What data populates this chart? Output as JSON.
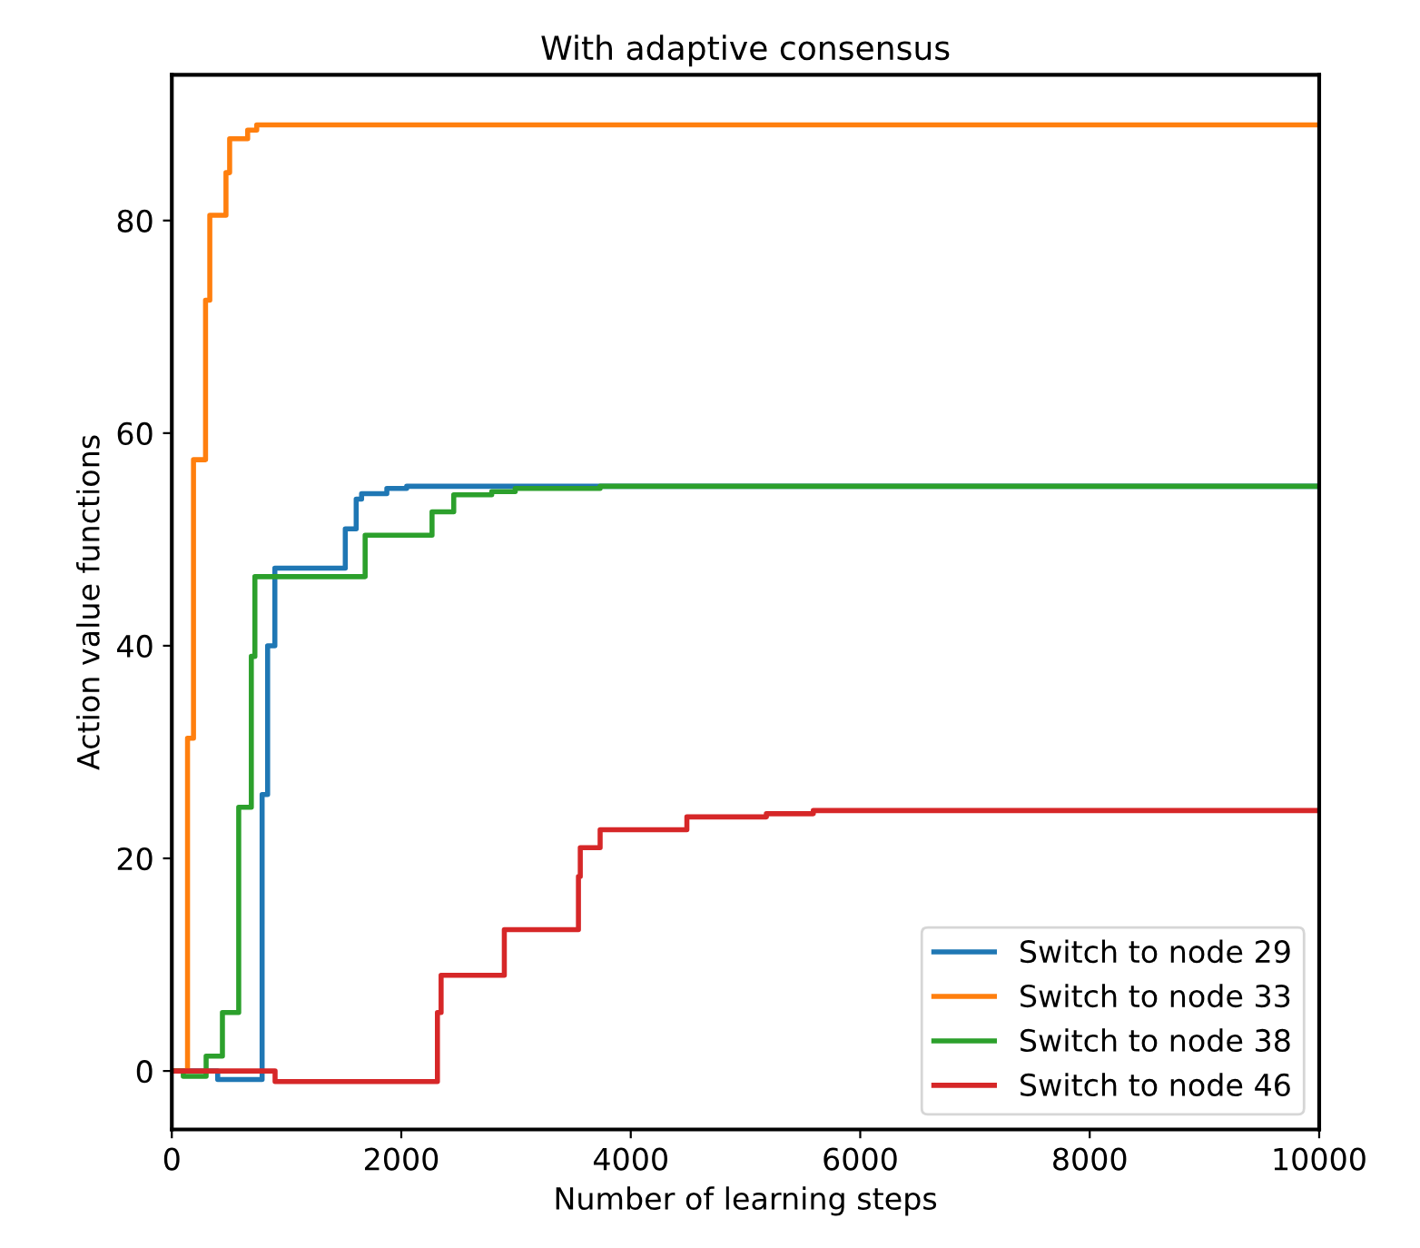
{
  "chart_data": {
    "type": "step",
    "title": "With adaptive consensus",
    "xlabel": "Number of learning steps",
    "ylabel": "Action value functions",
    "xlim": [
      0,
      10000
    ],
    "xticks": [
      0,
      2000,
      4000,
      6000,
      8000,
      10000
    ],
    "ylim": [
      -5.5,
      93.7
    ],
    "yticks": [
      0,
      20,
      40,
      60,
      80
    ],
    "grid": false,
    "legend": "bottom right",
    "series": [
      {
        "name": "Switch to node 29",
        "color": "#1f77b4",
        "x": [
          0,
          400,
          787,
          835,
          898,
          1512,
          1607,
          1654,
          1874,
          2047,
          10000
        ],
        "values": [
          0,
          -0.8,
          26,
          40,
          47.3,
          51,
          53.8,
          54.3,
          54.8,
          55,
          55
        ]
      },
      {
        "name": "Switch to node 33",
        "color": "#ff7f0e",
        "x": [
          0,
          137,
          189,
          294,
          331,
          472,
          504,
          661,
          740,
          10000
        ],
        "values": [
          0,
          31.3,
          57.5,
          72.5,
          80.5,
          84.5,
          87.7,
          88.5,
          89,
          89
        ]
      },
      {
        "name": "Switch to node 38",
        "color": "#2ca02c",
        "x": [
          0,
          100,
          299,
          441,
          583,
          693,
          724,
          1685,
          2268,
          2457,
          2788,
          2993,
          3733,
          10000
        ],
        "values": [
          0,
          -0.5,
          1.4,
          5.5,
          24.8,
          39,
          46.5,
          50.4,
          52.6,
          54.2,
          54.5,
          54.8,
          55,
          55
        ]
      },
      {
        "name": "Switch to node 46",
        "color": "#d62728",
        "x": [
          0,
          900,
          2315,
          2347,
          2898,
          3544,
          3560,
          3733,
          4489,
          5182,
          5591,
          10000
        ],
        "values": [
          0,
          -1,
          5.5,
          9,
          13.3,
          18.3,
          21,
          22.7,
          23.9,
          24.2,
          24.5,
          24.5
        ]
      }
    ]
  }
}
